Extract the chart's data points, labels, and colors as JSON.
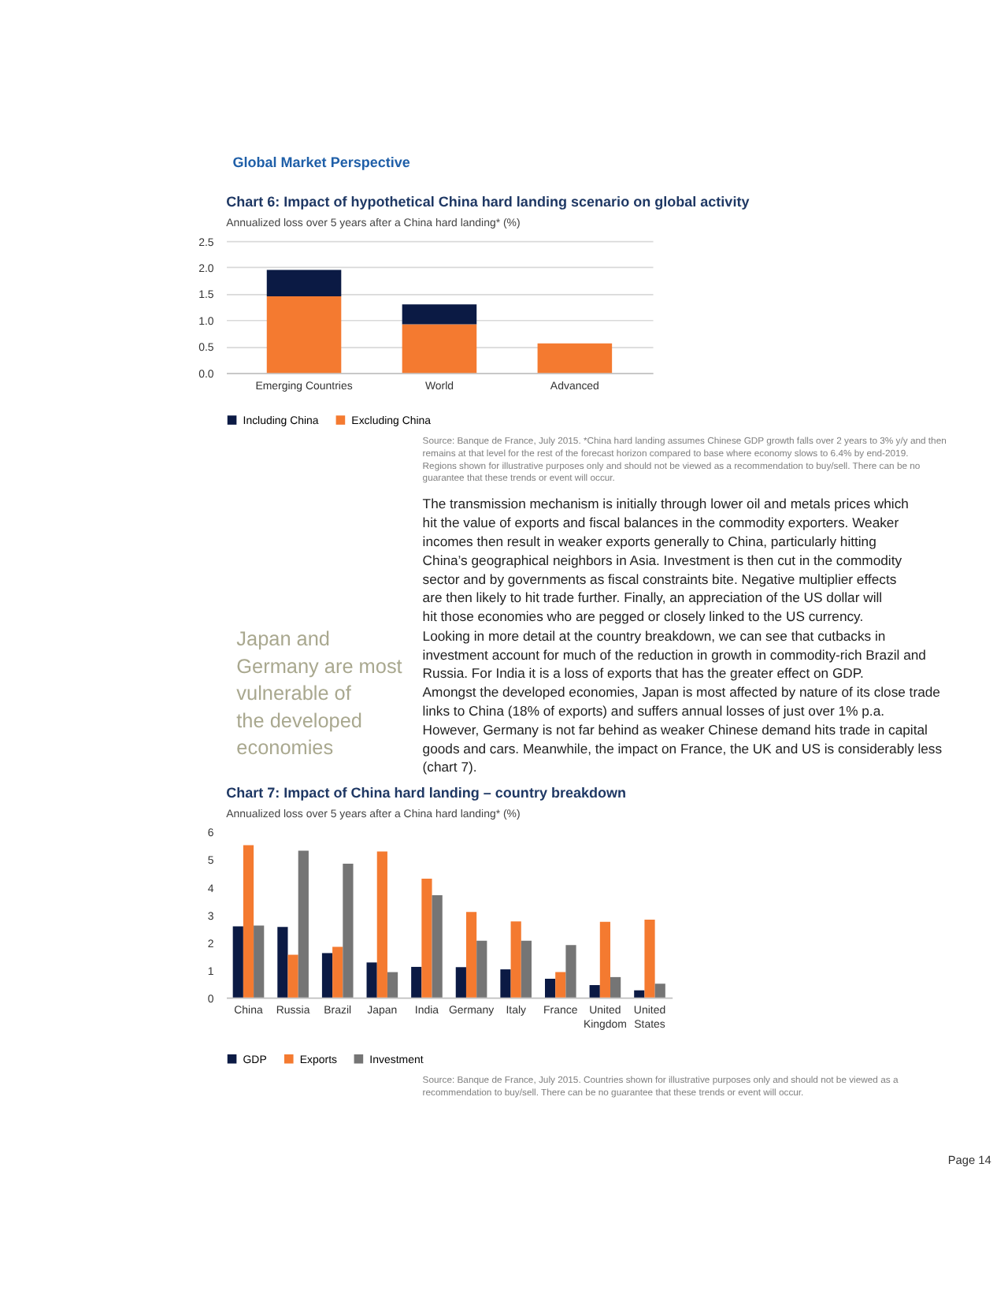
{
  "chart_data": [
    {
      "type": "bar",
      "title": "Chart 6: Impact of hypothetical China hard landing scenario on global activity",
      "subtitle": "Annualized loss over 5 years after a China hard landing* (%)",
      "categories": [
        "Emerging Countries",
        "World",
        "Advanced"
      ],
      "stacked": true,
      "series": [
        {
          "name": "Excluding China",
          "color": "#f47a30",
          "values": [
            1.45,
            0.92,
            0.56
          ]
        },
        {
          "name": "Including China",
          "color": "#0b1a44",
          "values": [
            0.5,
            0.38,
            null
          ]
        }
      ],
      "ylim": [
        0,
        2.5
      ],
      "yticks": [
        {
          "value": 0,
          "label": "0.0"
        },
        0.5,
        {
          "value": 1,
          "label": "1.0"
        },
        1.5,
        {
          "value": 2,
          "label": "2.0"
        },
        2.5
      ],
      "grid": "y",
      "legend": "bottom",
      "annotations": [
        "Global Market Perspective",
        "Source: Banque de France, July 2015. *China hard landing assumes Chinese GDP growth falls over 2 years to 3% y/y and then remains at that level for the rest of the forecast horizon compared to base where economy slows to 6.4% by end-2019. Regions shown for illustrative purposes only and should not be viewed as a recommendation to buy/sell. There can be no guarantee that these trends or event will occur.",
        "The transmission mechanism is initially through lower oil and metals prices which hit the value of exports and fiscal balances in the commodity exporters. Weaker incomes then result in weaker exports generally to China, particularly hitting China’s geographical neighbors in Asia. Investment is then cut in the commodity sector and by governments as fiscal constraints bite. Negative multiplier effects are then likely to hit trade further. Finally, an appreciation of the US dollar will hit those economies who are pegged or closely linked to the US currency.",
        "Looking in more detail at the country breakdown, we can see that cutbacks in investment account for much of the reduction in growth in commodity-rich Brazil and Russia. For India it is a loss of exports that has the greater effect on GDP. Amongst the developed economies, Japan is most affected by nature of its close trade links to China (18% of exports) and suffers annual losses of just over 1% p.a. However, Germany is not far behind as weaker Chinese demand hits trade in capital goods and cars. Meanwhile, the impact on France, the UK and US is considerably less (chart 7).",
        "Japan and Germany are most vulnerable of the developed economies"
      ]
    },
    {
      "type": "bar",
      "title": "Chart 7: Impact of China hard landing – country breakdown",
      "subtitle": "Annualized loss over 5 years after a China hard landing* (%)",
      "categories": [
        "China",
        "Russia",
        "Brazil",
        "Japan",
        "India",
        "Germany",
        "Italy",
        "France",
        "United Kingdom",
        "United States"
      ],
      "series": [
        {
          "name": "GDP",
          "color": "#0b1a44",
          "values": [
            2.58,
            2.56,
            1.61,
            1.27,
            1.11,
            1.1,
            1.02,
            0.68,
            0.45,
            0.26
          ]
        },
        {
          "name": "Exports",
          "color": "#f47a30",
          "values": [
            5.52,
            1.55,
            1.84,
            5.29,
            4.31,
            3.1,
            2.76,
            0.92,
            2.74,
            2.82
          ]
        },
        {
          "name": "Investment",
          "color": "#757575",
          "values": [
            2.61,
            5.32,
            4.85,
            0.92,
            3.71,
            2.06,
            2.06,
            1.9,
            0.74,
            0.5
          ]
        }
      ],
      "ylim": [
        0,
        6
      ],
      "yticks": [
        0,
        1,
        2,
        3,
        4,
        5,
        6
      ],
      "grid": false,
      "legend": "bottom",
      "annotations": [
        "Source: Banque de France, July 2015. Countries shown for illustrative purposes only and should not be viewed as a recommendation to buy/sell. There can be no guarantee that these trends or event will occur.",
        "Page 14"
      ]
    }
  ]
}
